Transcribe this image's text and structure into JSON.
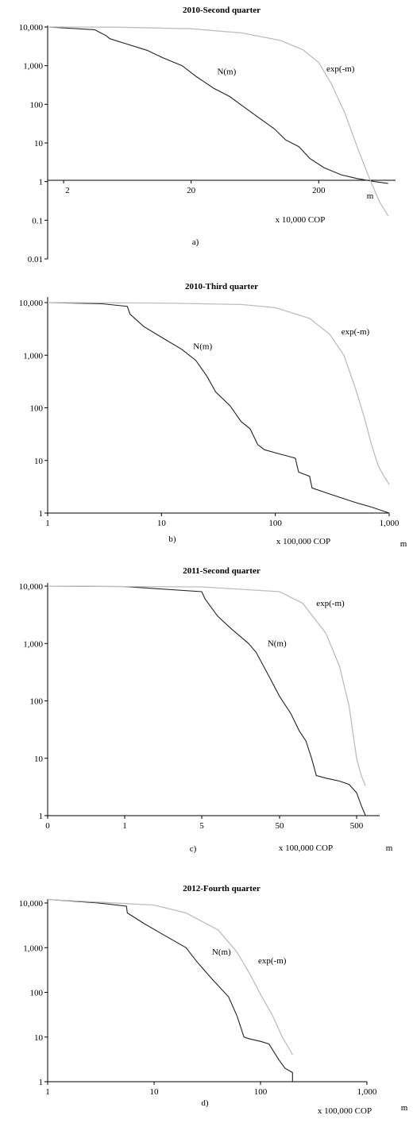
{
  "chart_data": [
    {
      "type": "line",
      "title": "2010-Second quarter",
      "panel_label": "a)",
      "xlabel": "m",
      "unit_note": "x 10,000 COP",
      "x_scale": "log",
      "y_scale": "log",
      "xlim": [
        1.5,
        800
      ],
      "ylim": [
        0.01,
        10000
      ],
      "x_ticks": [
        2,
        20,
        200
      ],
      "x_tick_labels": [
        "2",
        "20",
        "200"
      ],
      "y_ticks": [
        0.01,
        0.1,
        1,
        10,
        100,
        1000,
        10000
      ],
      "y_tick_labels": [
        "0.01",
        "0.1",
        "1",
        "10",
        "100",
        "1,000",
        "10,000"
      ],
      "series": [
        {
          "name": "N(m)",
          "color": "#222222",
          "x": [
            1.5,
            3.5,
            4.3,
            4.6,
            6,
            9,
            12,
            17,
            22,
            30,
            40,
            60,
            90,
            110,
            140,
            170,
            220,
            300,
            400,
            550,
            700
          ],
          "y": [
            10000,
            8500,
            6000,
            5000,
            3800,
            2500,
            1600,
            1000,
            520,
            260,
            160,
            60,
            23,
            12,
            8,
            4,
            2.3,
            1.5,
            1.2,
            1,
            0.9
          ]
        },
        {
          "name": "exp(-m)",
          "color": "#bdbdbd",
          "x": [
            1.5,
            5,
            20,
            50,
            100,
            150,
            200,
            250,
            320,
            400,
            500,
            600,
            700
          ],
          "y": [
            10000,
            9900,
            9000,
            7000,
            4500,
            2600,
            1200,
            350,
            60,
            8,
            1.2,
            0.3,
            0.13
          ]
        }
      ],
      "annotations": [
        {
          "text": "N(m)",
          "x": 32,
          "y": 600
        },
        {
          "text": "exp(-m)",
          "x": 230,
          "y": 700
        }
      ]
    },
    {
      "type": "line",
      "title": "2010-Third quarter",
      "panel_label": "b)",
      "xlabel": "m",
      "unit_note": "x 100,000 COP",
      "x_scale": "log",
      "y_scale": "log",
      "xlim": [
        1,
        1000
      ],
      "ylim": [
        1,
        10000
      ],
      "x_ticks": [
        1,
        10,
        100,
        1000
      ],
      "x_tick_labels": [
        "1",
        "10",
        "100",
        "1,000"
      ],
      "y_ticks": [
        1,
        10,
        100,
        1000,
        10000
      ],
      "y_tick_labels": [
        "1",
        "10",
        "100",
        "1,000",
        "10,000"
      ],
      "series": [
        {
          "name": "N(m)",
          "color": "#222222",
          "x": [
            1,
            3,
            5,
            5.3,
            7,
            10,
            15,
            20,
            25,
            30,
            40,
            50,
            60,
            70,
            80,
            100,
            130,
            150,
            160,
            200,
            210,
            300,
            500,
            700,
            1000
          ],
          "y": [
            10000,
            9500,
            8500,
            6000,
            3500,
            2200,
            1300,
            800,
            400,
            200,
            110,
            55,
            40,
            20,
            16,
            14,
            12,
            11,
            6,
            5,
            3,
            2.3,
            1.6,
            1.3,
            1
          ]
        },
        {
          "name": "exp(-m)",
          "color": "#bdbdbd",
          "x": [
            1,
            10,
            50,
            100,
            200,
            300,
            400,
            500,
            600,
            700,
            800,
            900,
            1000
          ],
          "y": [
            10000,
            9800,
            9200,
            8000,
            5000,
            2500,
            1000,
            250,
            70,
            20,
            8,
            5,
            3.5
          ]
        }
      ],
      "annotations": [
        {
          "text": "N(m)",
          "x": 19,
          "y": 1300
        },
        {
          "text": "exp(-m)",
          "x": 380,
          "y": 2500
        }
      ]
    },
    {
      "type": "line",
      "title": "2011-Second quarter",
      "panel_label": "c)",
      "xlabel": "m",
      "unit_note": "x 100,000 COP",
      "x_scale": "log",
      "y_scale": "log",
      "x_ticks": [
        "0",
        "1",
        "5",
        "50",
        "500"
      ],
      "x_tick_labels": [
        "0",
        "1",
        "5",
        "50",
        "500"
      ],
      "y_ticks": [
        1,
        10,
        100,
        1000,
        10000
      ],
      "y_tick_labels": [
        "1",
        "10",
        "100",
        "1,000",
        "10,000"
      ],
      "series": [
        {
          "name": "N(m)",
          "color": "#222222",
          "x": [
            0.1,
            1,
            5,
            5.5,
            8,
            12,
            20,
            25,
            35,
            50,
            70,
            90,
            110,
            130,
            150,
            200,
            300,
            400,
            500,
            550,
            600
          ],
          "y": [
            10000,
            9800,
            8000,
            6000,
            3000,
            1800,
            1000,
            700,
            300,
            120,
            60,
            30,
            20,
            10,
            5,
            4.5,
            4,
            3.5,
            2.5,
            1.5,
            1
          ]
        },
        {
          "name": "exp(-m)",
          "color": "#bdbdbd",
          "x": [
            0.1,
            5,
            50,
            100,
            200,
            300,
            400,
            500,
            550,
            600
          ],
          "y": [
            10000,
            9700,
            8000,
            5000,
            1500,
            400,
            80,
            10,
            5,
            3.3
          ]
        }
      ],
      "annotations": [
        {
          "text": "N(m)",
          "x": 35,
          "y": 900
        },
        {
          "text": "exp(-m)",
          "x": 150,
          "y": 4500
        }
      ]
    },
    {
      "type": "line",
      "title": "2012-Fourth quarter",
      "panel_label": "d)",
      "xlabel": "m",
      "unit_note": "x 100,000 COP",
      "x_scale": "log",
      "y_scale": "log",
      "xlim": [
        1,
        1000
      ],
      "ylim": [
        1,
        10000
      ],
      "x_ticks": [
        1,
        10,
        100,
        1000
      ],
      "x_tick_labels": [
        "1",
        "10",
        "100",
        "1,000"
      ],
      "y_ticks": [
        1,
        10,
        100,
        1000,
        10000
      ],
      "y_tick_labels": [
        "1",
        "10",
        "100",
        "1,000",
        "10,000"
      ],
      "series": [
        {
          "name": "N(m)",
          "color": "#222222",
          "x": [
            1,
            3,
            5.5,
            5.6,
            8,
            12,
            20,
            25,
            35,
            50,
            60,
            70,
            80,
            100,
            120,
            150,
            170,
            200,
            200
          ],
          "y": [
            12000,
            10000,
            8500,
            6000,
            3500,
            2000,
            1000,
            500,
            200,
            80,
            30,
            10,
            9,
            8,
            7,
            3,
            2,
            1.6,
            1
          ]
        },
        {
          "name": "exp(-m)",
          "color": "#bdbdbd",
          "x": [
            1,
            10,
            20,
            40,
            60,
            80,
            100,
            130,
            160,
            190,
            200
          ],
          "y": [
            12000,
            9000,
            6000,
            2500,
            800,
            250,
            90,
            30,
            10,
            5,
            4
          ]
        }
      ],
      "annotations": [
        {
          "text": "N(m)",
          "x": 35,
          "y": 700
        },
        {
          "text": "exp(-m)",
          "x": 95,
          "y": 450
        }
      ]
    }
  ]
}
